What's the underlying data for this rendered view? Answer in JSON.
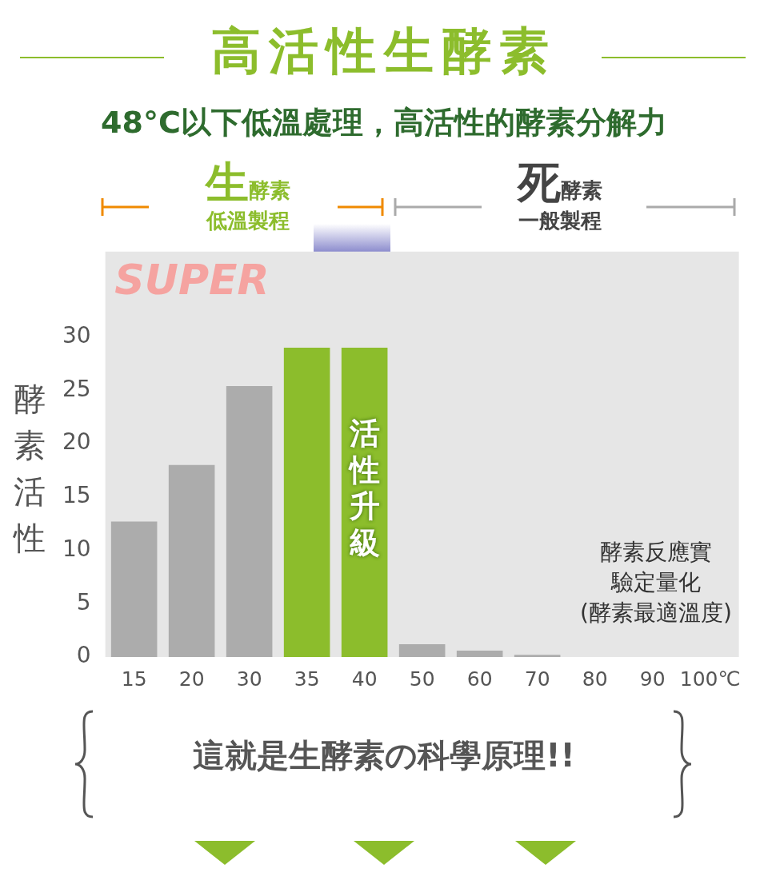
{
  "chart_data": {
    "type": "bar",
    "title": "高活性生酵素",
    "subtitle": "48°C以下低溫處理，高活性的酵素分解力",
    "ylabel": "酵素活性",
    "categories": [
      "15",
      "20",
      "30",
      "35",
      "40",
      "50",
      "60",
      "70",
      "80",
      "90",
      "100℃"
    ],
    "values": [
      12.7,
      18,
      25.4,
      29,
      29,
      1.2,
      0.6,
      0.2,
      0,
      0,
      0
    ],
    "colors": [
      "#acacac",
      "#acacac",
      "#acacac",
      "#8cbd2c",
      "#8cbd2c",
      "#acacac",
      "#acacac",
      "#acacac",
      "#acacac",
      "#acacac",
      "#acacac"
    ],
    "ylim": [
      0,
      38
    ],
    "bands": [
      {
        "axis": "y",
        "from": 0,
        "to": 38,
        "color": "#e6e6e6"
      }
    ],
    "yticks": [
      0,
      5,
      10,
      15,
      20,
      25,
      30
    ],
    "grid": false,
    "legend": false,
    "annotations": [
      "生酵素低溫製程",
      "死酵素一般製程",
      "SUPER",
      "活性升級",
      "酵素反應實驗定量化(酵素最適溫度)",
      "這就是生酵素の科學原理!!"
    ]
  }
}
